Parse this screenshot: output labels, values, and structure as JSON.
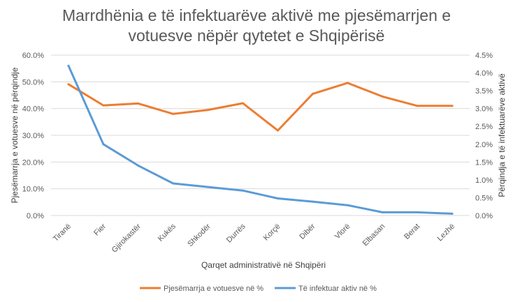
{
  "chart_data": {
    "type": "line",
    "title_line1": "Marrdhënia e të infektuarëve aktivë me pjesëmarrjen e",
    "title_line2": "votuesve nëpër qytetet e Shqipërisë",
    "xlabel": "Qarqet administrativë në Shqipëri",
    "ylabel_left": "Pjesëmarrja e votuesve në përqindje",
    "ylabel_right": "Përqindja e të infektuarëve aktivë",
    "categories": [
      "Tiranë",
      "Fier",
      "Gjirokastër",
      "Kukës",
      "Shkodër",
      "Durrës",
      "Korçë",
      "Dibër",
      "Vlorë",
      "Elbasan",
      "Berat",
      "Lezhë"
    ],
    "left_axis": {
      "ylim": [
        0,
        60
      ],
      "ticks": [
        "0.0%",
        "10.0%",
        "20.0%",
        "30.0%",
        "40.0%",
        "50.0%",
        "60.0%"
      ]
    },
    "right_axis": {
      "ylim": [
        0,
        4.5
      ],
      "ticks": [
        "0.0%",
        "0.5%",
        "1.0%",
        "1.5%",
        "2.0%",
        "2.5%",
        "3.0%",
        "3.5%",
        "4.0%",
        "4.5%"
      ]
    },
    "series": [
      {
        "name": "Pjesëmarrja e votuesve në %",
        "axis": "left",
        "color": "#ED7D31",
        "values": [
          49.1,
          41.2,
          41.9,
          38.0,
          39.5,
          42.0,
          31.8,
          45.5,
          49.6,
          44.5,
          41.0,
          41.0
        ]
      },
      {
        "name": "Të infektuar aktiv në %",
        "axis": "right",
        "color": "#5B9BD5",
        "values": [
          4.2,
          2.0,
          1.4,
          0.9,
          0.8,
          0.7,
          0.48,
          0.39,
          0.29,
          0.09,
          0.09,
          0.05
        ]
      }
    ],
    "grid": true,
    "legend_position": "bottom"
  }
}
